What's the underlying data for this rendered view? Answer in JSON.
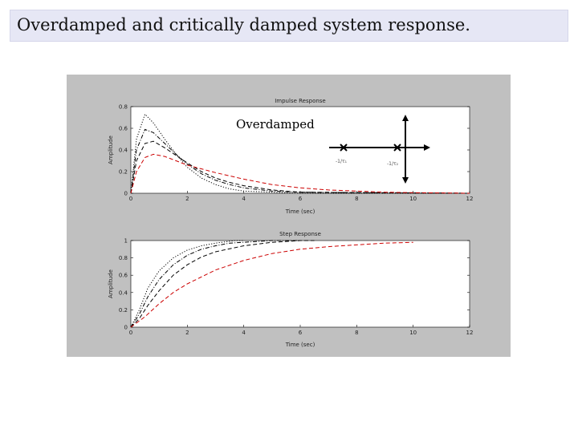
{
  "slide": {
    "title": "Overdamped and critically damped system response."
  },
  "annotation": {
    "label": "Overdamped",
    "pole_labels": [
      "-1/τ₁",
      "-1/τ₂"
    ]
  },
  "colors": {
    "title_bg": "#e6e7f5",
    "figure_bg": "#c0c0c0",
    "red_curve": "#cc0000",
    "black_curve": "#000000"
  },
  "chart_data": [
    {
      "type": "line",
      "title": "Impulse Response",
      "xlabel": "Time (sec)",
      "ylabel": "Amplitude",
      "xlim": [
        0,
        12
      ],
      "ylim": [
        0,
        0.8
      ],
      "xticks": [
        "0",
        "2",
        "4",
        "6",
        "8",
        "10",
        "12"
      ],
      "yticks": [
        "0",
        "0.2",
        "0.4",
        "0.6",
        "0.8"
      ],
      "series": [
        {
          "style": "dotted",
          "color": "#000000",
          "values": [
            [
              0,
              0
            ],
            [
              0.2,
              0.5
            ],
            [
              0.5,
              0.73
            ],
            [
              0.8,
              0.65
            ],
            [
              1.2,
              0.5
            ],
            [
              1.6,
              0.36
            ],
            [
              2,
              0.24
            ],
            [
              2.5,
              0.14
            ],
            [
              3,
              0.08
            ],
            [
              3.5,
              0.04
            ],
            [
              4,
              0.02
            ],
            [
              5,
              0.01
            ],
            [
              6,
              0
            ],
            [
              12,
              0
            ]
          ]
        },
        {
          "style": "dashdot",
          "color": "#000000",
          "values": [
            [
              0,
              0
            ],
            [
              0.2,
              0.4
            ],
            [
              0.5,
              0.59
            ],
            [
              0.8,
              0.56
            ],
            [
              1.2,
              0.46
            ],
            [
              1.6,
              0.36
            ],
            [
              2,
              0.27
            ],
            [
              2.5,
              0.18
            ],
            [
              3,
              0.12
            ],
            [
              3.5,
              0.08
            ],
            [
              4,
              0.05
            ],
            [
              5,
              0.02
            ],
            [
              6,
              0.01
            ],
            [
              12,
              0
            ]
          ]
        },
        {
          "style": "dashed",
          "color": "#000000",
          "values": [
            [
              0,
              0
            ],
            [
              0.2,
              0.3
            ],
            [
              0.5,
              0.46
            ],
            [
              0.8,
              0.48
            ],
            [
              1.2,
              0.42
            ],
            [
              1.6,
              0.35
            ],
            [
              2,
              0.28
            ],
            [
              2.5,
              0.2
            ],
            [
              3,
              0.14
            ],
            [
              3.5,
              0.1
            ],
            [
              4,
              0.07
            ],
            [
              5,
              0.03
            ],
            [
              6,
              0.01
            ],
            [
              12,
              0
            ]
          ]
        },
        {
          "style": "dashed",
          "color": "#cc0000",
          "values": [
            [
              0,
              0
            ],
            [
              0.2,
              0.2
            ],
            [
              0.5,
              0.33
            ],
            [
              0.8,
              0.36
            ],
            [
              1.2,
              0.34
            ],
            [
              1.6,
              0.3
            ],
            [
              2,
              0.26
            ],
            [
              3,
              0.19
            ],
            [
              4,
              0.13
            ],
            [
              5,
              0.08
            ],
            [
              6,
              0.05
            ],
            [
              7,
              0.03
            ],
            [
              8,
              0.02
            ],
            [
              9,
              0.01
            ],
            [
              10,
              0.005
            ],
            [
              12,
              0
            ]
          ]
        }
      ]
    },
    {
      "type": "line",
      "title": "Step Response",
      "xlabel": "Time (sec)",
      "ylabel": "Amplitude",
      "xlim": [
        0,
        12
      ],
      "ylim": [
        0,
        1
      ],
      "xticks": [
        "0",
        "2",
        "4",
        "6",
        "8",
        "10",
        "12"
      ],
      "yticks": [
        "0",
        "0.2",
        "0.4",
        "0.6",
        "0.8",
        "1"
      ],
      "series": [
        {
          "style": "dotted",
          "color": "#000000",
          "values": [
            [
              0,
              0
            ],
            [
              0.3,
              0.2
            ],
            [
              0.6,
              0.45
            ],
            [
              1,
              0.65
            ],
            [
              1.5,
              0.8
            ],
            [
              2,
              0.89
            ],
            [
              2.5,
              0.94
            ],
            [
              3,
              0.97
            ],
            [
              3.7,
              1
            ],
            [
              4,
              1
            ]
          ]
        },
        {
          "style": "dashdot",
          "color": "#000000",
          "values": [
            [
              0,
              0
            ],
            [
              0.3,
              0.15
            ],
            [
              0.6,
              0.35
            ],
            [
              1,
              0.55
            ],
            [
              1.5,
              0.72
            ],
            [
              2,
              0.83
            ],
            [
              2.5,
              0.9
            ],
            [
              3,
              0.94
            ],
            [
              3.5,
              0.97
            ],
            [
              4,
              0.98
            ],
            [
              5,
              1
            ],
            [
              6,
              1
            ]
          ]
        },
        {
          "style": "dashed",
          "color": "#000000",
          "values": [
            [
              0,
              0
            ],
            [
              0.3,
              0.1
            ],
            [
              0.6,
              0.25
            ],
            [
              1,
              0.42
            ],
            [
              1.5,
              0.6
            ],
            [
              2,
              0.72
            ],
            [
              2.5,
              0.81
            ],
            [
              3,
              0.87
            ],
            [
              4,
              0.94
            ],
            [
              5,
              0.98
            ],
            [
              6,
              1
            ],
            [
              6.5,
              1
            ]
          ]
        },
        {
          "style": "dashed",
          "color": "#cc0000",
          "values": [
            [
              0,
              0
            ],
            [
              0.5,
              0.12
            ],
            [
              1,
              0.27
            ],
            [
              1.5,
              0.4
            ],
            [
              2,
              0.5
            ],
            [
              3,
              0.66
            ],
            [
              4,
              0.77
            ],
            [
              5,
              0.85
            ],
            [
              6,
              0.9
            ],
            [
              7,
              0.93
            ],
            [
              8,
              0.95
            ],
            [
              9,
              0.97
            ],
            [
              10,
              0.98
            ]
          ]
        }
      ]
    }
  ]
}
